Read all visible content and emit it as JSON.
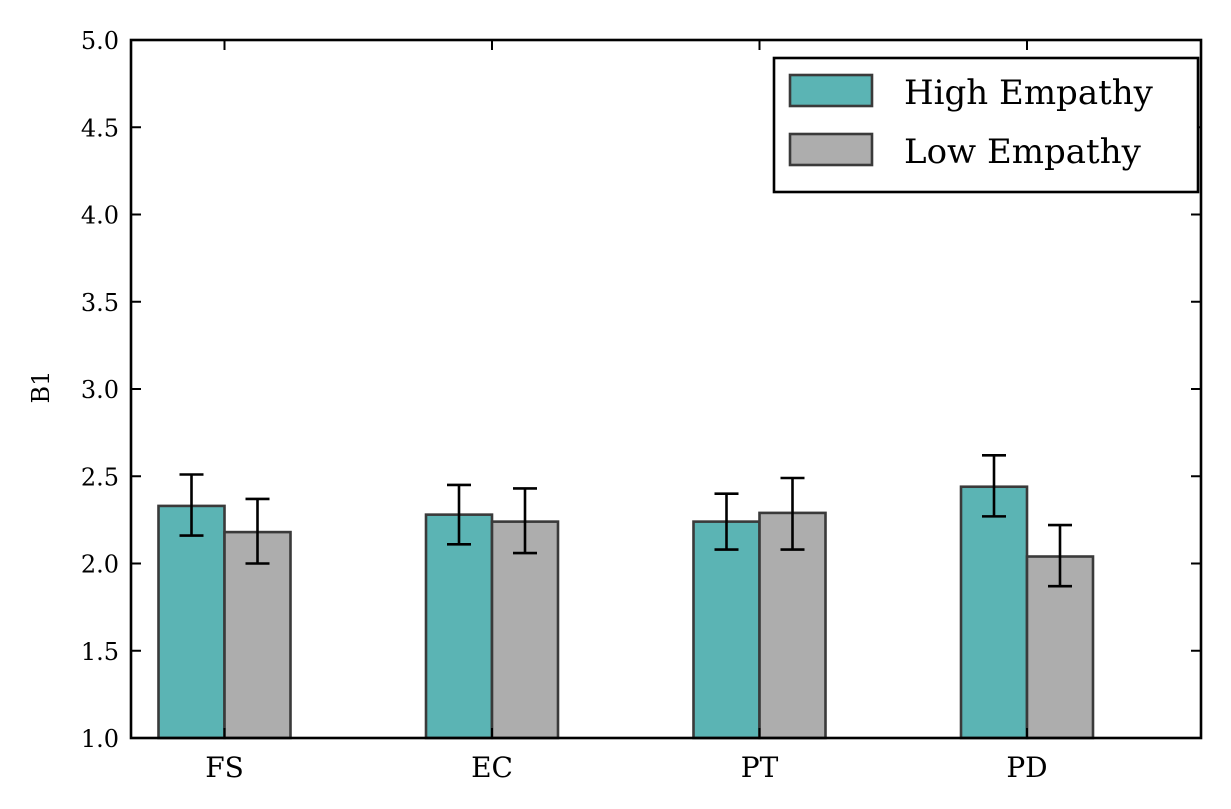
{
  "chart_data": {
    "type": "bar",
    "title": "",
    "xlabel": "",
    "ylabel": "B1",
    "ylim": [
      1.0,
      5.0
    ],
    "yticks": [
      "1.0",
      "1.5",
      "2.0",
      "2.5",
      "3.0",
      "3.5",
      "4.0",
      "4.5",
      "5.0"
    ],
    "categories": [
      "FS",
      "EC",
      "PT",
      "PD"
    ],
    "series": [
      {
        "name": "High Empathy",
        "color": "#5bb4b4",
        "values": [
          2.33,
          2.28,
          2.24,
          2.44
        ],
        "error_low": [
          2.16,
          2.11,
          2.08,
          2.27
        ],
        "error_high": [
          2.51,
          2.45,
          2.4,
          2.62
        ]
      },
      {
        "name": "Low Empathy",
        "color": "#adadad",
        "values": [
          2.18,
          2.24,
          2.29,
          2.04
        ],
        "error_low": [
          2.0,
          2.06,
          2.08,
          1.87
        ],
        "error_high": [
          2.37,
          2.43,
          2.49,
          2.22
        ]
      }
    ],
    "grid": false,
    "legend": "top-right"
  }
}
